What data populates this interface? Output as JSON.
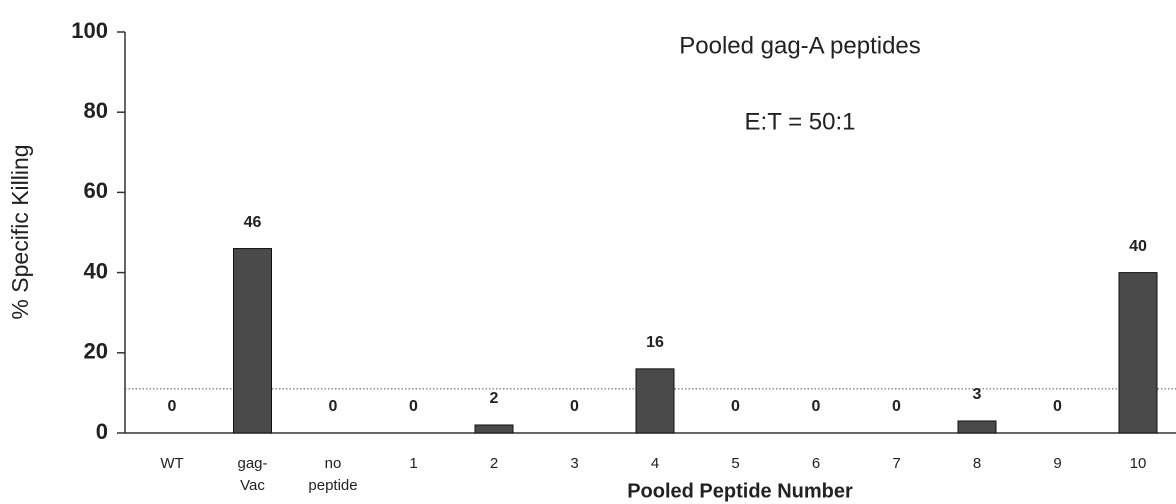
{
  "chart_data": {
    "type": "bar",
    "title": "Pooled gag-A peptides",
    "annotation": "E:T = 50:1",
    "y_label": "% Specific Killing",
    "x_label": "Pooled Peptide Number",
    "categories": [
      "WT",
      "gag- Vac",
      "no peptide",
      "1",
      "2",
      "3",
      "4",
      "5",
      "6",
      "7",
      "8",
      "9",
      "10"
    ],
    "values": [
      0,
      46,
      0,
      0,
      2,
      0,
      16,
      0,
      0,
      0,
      3,
      0,
      40
    ],
    "color": "#4a4a4a",
    "reference_line": 11,
    "ylim": [
      0,
      100
    ],
    "yticks": [
      0,
      20,
      40,
      60,
      80,
      100
    ]
  }
}
